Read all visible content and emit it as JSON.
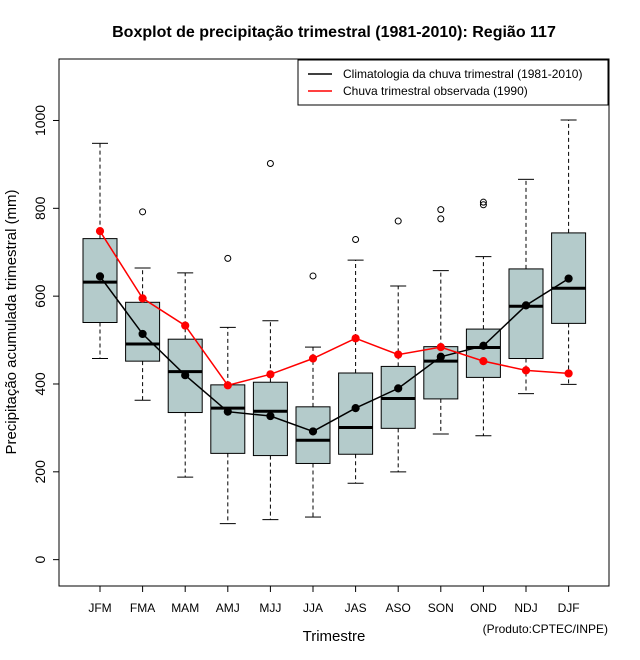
{
  "chart_data": {
    "type": "boxplot",
    "title": "Boxplot de precipitação trimestral (1981-2010): Região 117",
    "xlabel": "Trimestre",
    "ylabel": "Precipitação acumulada trimestral (mm)",
    "ylim": [
      -60,
      1140
    ],
    "yticks": [
      0,
      200,
      400,
      600,
      800,
      1000
    ],
    "categories": [
      "JFM",
      "FMA",
      "MAM",
      "AMJ",
      "MJJ",
      "JJA",
      "JAS",
      "ASO",
      "SON",
      "OND",
      "NDJ",
      "DJF"
    ],
    "boxes": [
      {
        "whisker_low": 458,
        "q1": 540,
        "median": 632,
        "q3": 731,
        "whisker_high": 948,
        "outliers": []
      },
      {
        "whisker_low": 363,
        "q1": 452,
        "median": 491,
        "q3": 586,
        "whisker_high": 664,
        "outliers": [
          792
        ]
      },
      {
        "whisker_low": 188,
        "q1": 335,
        "median": 428,
        "q3": 502,
        "whisker_high": 653,
        "outliers": []
      },
      {
        "whisker_low": 82,
        "q1": 242,
        "median": 345,
        "q3": 398,
        "whisker_high": 529,
        "outliers": [
          686
        ]
      },
      {
        "whisker_low": 91,
        "q1": 237,
        "median": 338,
        "q3": 404,
        "whisker_high": 544,
        "outliers": [
          902
        ]
      },
      {
        "whisker_low": 97,
        "q1": 219,
        "median": 272,
        "q3": 348,
        "whisker_high": 484,
        "outliers": [
          646
        ]
      },
      {
        "whisker_low": 174,
        "q1": 240,
        "median": 301,
        "q3": 425,
        "whisker_high": 682,
        "outliers": [
          729
        ]
      },
      {
        "whisker_low": 200,
        "q1": 299,
        "median": 367,
        "q3": 440,
        "whisker_high": 623,
        "outliers": [
          771
        ]
      },
      {
        "whisker_low": 286,
        "q1": 366,
        "median": 452,
        "q3": 485,
        "whisker_high": 658,
        "outliers": [
          776,
          797
        ]
      },
      {
        "whisker_low": 282,
        "q1": 415,
        "median": 483,
        "q3": 525,
        "whisker_high": 690,
        "outliers": [
          808,
          814
        ]
      },
      {
        "whisker_low": 378,
        "q1": 458,
        "median": 577,
        "q3": 662,
        "whisker_high": 866,
        "outliers": []
      },
      {
        "whisker_low": 399,
        "q1": 538,
        "median": 618,
        "q3": 744,
        "whisker_high": 1001,
        "outliers": []
      }
    ],
    "series": [
      {
        "name": "Climatologia da chuva trimestral (1981-2010)",
        "color": "#000000",
        "values": [
          645,
          514,
          420,
          337,
          327,
          292,
          345,
          390,
          462,
          487,
          579,
          640
        ]
      },
      {
        "name": "Chuva trimestral observada (1990)",
        "color": "#ff0000",
        "values": [
          748,
          595,
          533,
          397,
          422,
          458,
          504,
          467,
          484,
          452,
          431,
          424
        ]
      }
    ],
    "legend_position": "top-right",
    "box_color": "#b4cbcb",
    "credit": "(Produto:CPTEC/INPE)"
  }
}
